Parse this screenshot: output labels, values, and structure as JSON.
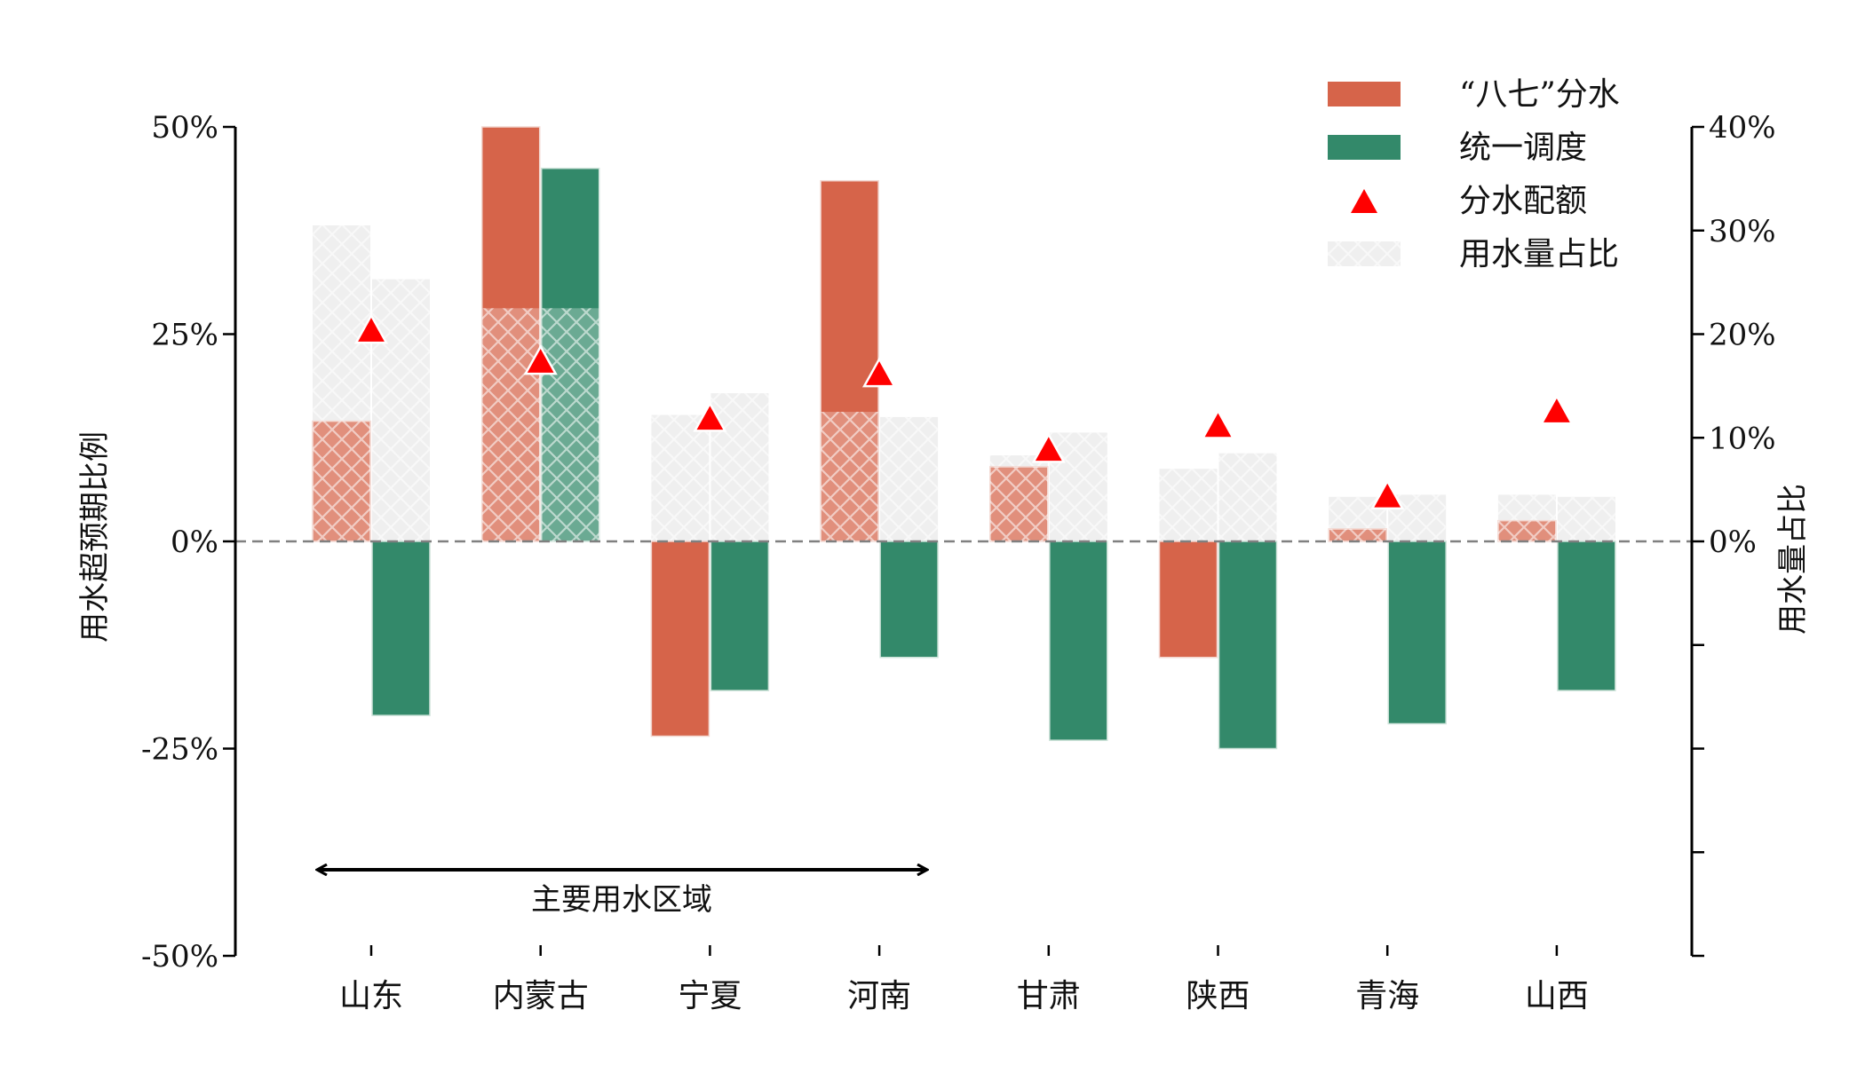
{
  "chart_data": {
    "type": "bar",
    "categories": [
      "山东",
      "内蒙古",
      "宁夏",
      "河南",
      "甘肃",
      "陕西",
      "青海",
      "山西"
    ],
    "ylabel": "用水超预期比例",
    "y2label": "用水量占比",
    "ylim": [
      -50,
      50
    ],
    "y2lim": [
      -40,
      40
    ],
    "yticks": [
      "-50%",
      "-25%",
      "0%",
      "25%",
      "50%"
    ],
    "y2ticks": [
      "0%",
      "10%",
      "20%",
      "30%",
      "40%"
    ],
    "series": [
      {
        "name": "“八七”分水",
        "type": "bar",
        "axis": "left",
        "color": "#d6644a",
        "values": [
          14.5,
          50,
          -23.5,
          43.5,
          9,
          -14,
          1.5,
          2.5
        ]
      },
      {
        "name": "统一调度",
        "type": "bar",
        "axis": "left",
        "color": "#33896a",
        "values": [
          -21,
          45,
          -18,
          -14,
          -24,
          -25,
          -22,
          -18
        ]
      },
      {
        "name": "分水配额",
        "type": "marker",
        "axis": "right",
        "color": "#ff0000",
        "values": [
          20,
          17,
          11.5,
          15.8,
          8.5,
          10.8,
          4,
          12.2
        ]
      },
      {
        "name": "用水量占比",
        "type": "hatched-bar",
        "axis": "right",
        "color": "#efefef",
        "values_a": [
          30.5,
          22.5,
          12.2,
          12.5,
          8.3,
          7,
          4.3,
          4.5
        ],
        "values_b": [
          25.3,
          22.5,
          14.3,
          12,
          10.5,
          8.5,
          4.5,
          4.3
        ]
      }
    ],
    "annotation": {
      "text": "主要用水区域",
      "from": "山东",
      "to": "河南"
    },
    "legend_position": "top-right",
    "zero_line": "dashed"
  }
}
